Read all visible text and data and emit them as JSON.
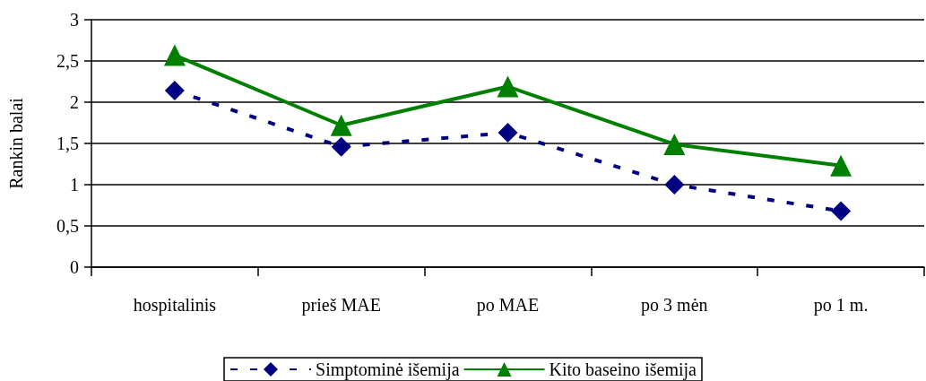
{
  "chart_data": {
    "type": "line",
    "ylabel": "Rankin balai",
    "categories": [
      "hospitalinis",
      "prieš MAE",
      "po MAE",
      "po 3 mėn",
      "po 1 m."
    ],
    "series": [
      {
        "name": "Simptominė išemija",
        "color": "#000080",
        "values": [
          2.14,
          1.46,
          1.63,
          1.0,
          0.68
        ],
        "marker": "diamond",
        "line_style": "dashed"
      },
      {
        "name": "Kito baseino išemija",
        "color": "#008000",
        "values": [
          2.57,
          1.72,
          2.19,
          1.49,
          1.23
        ],
        "marker": "triangle",
        "line_style": "solid"
      }
    ],
    "ylim": [
      0,
      3
    ],
    "yticks": [
      0,
      {
        "value": 0.5,
        "label": "0,5"
      },
      1,
      {
        "value": 1.5,
        "label": "1,5"
      },
      2,
      {
        "value": 2.5,
        "label": "2,5"
      },
      3
    ],
    "grid": "y",
    "legend": "bottom"
  }
}
